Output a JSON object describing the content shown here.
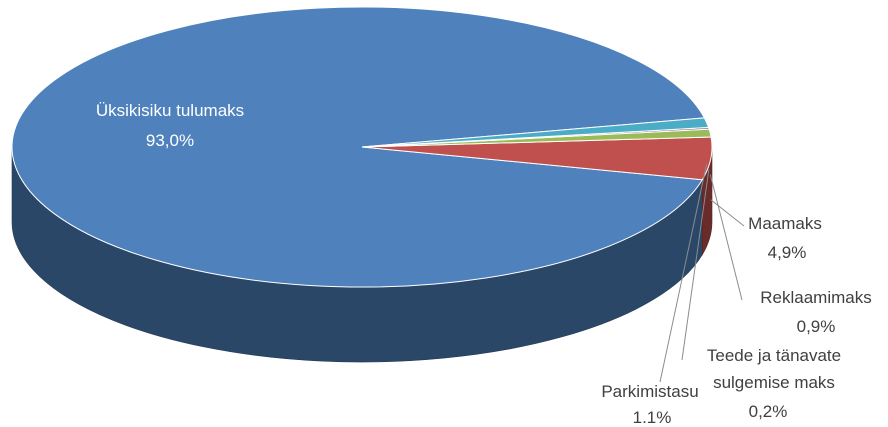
{
  "chart_data": {
    "type": "pie",
    "three_d": true,
    "legend": "none",
    "slices": [
      {
        "name": "Üksikisiku tulumaks",
        "label_value": "93,0%",
        "value": 93.0,
        "color": "#4f81bd"
      },
      {
        "name": "Maamaks",
        "label_value": "4,9%",
        "value": 4.9,
        "color": "#c0504d"
      },
      {
        "name": "Reklaamimaks",
        "label_value": "0,9%",
        "value": 0.9,
        "color": "#9bbb59"
      },
      {
        "name": "Teede ja tänavate sulgemise maks",
        "name_lines": [
          "Teede ja tänavate",
          "sulgemise maks"
        ],
        "label_value": "0,2%",
        "value": 0.2,
        "color": "#8064a2"
      },
      {
        "name": "Parkimistasu",
        "label_value": "1.1%",
        "value": 1.1,
        "color": "#4bacc6"
      }
    ]
  }
}
